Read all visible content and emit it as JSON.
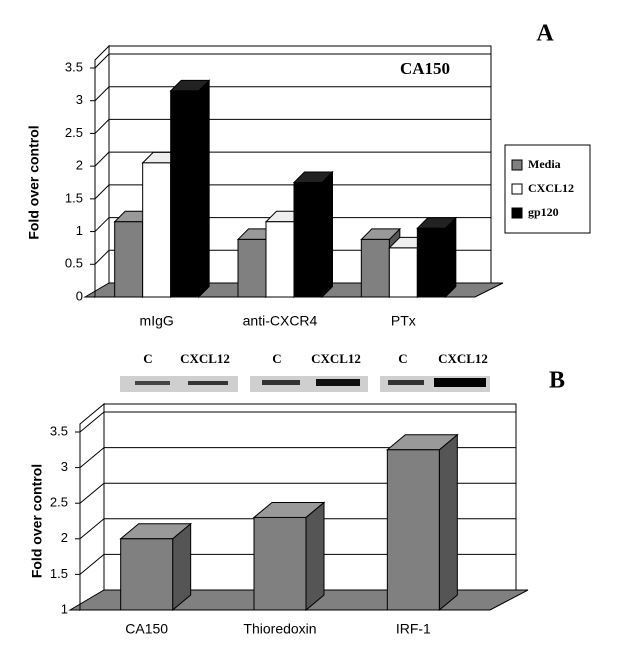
{
  "chart_data": [
    {
      "type": "bar3d",
      "panel": "A",
      "title": "CA150",
      "y_label": "Fold over control",
      "categories": [
        "mIgG",
        "anti-CXCR4",
        "PTx"
      ],
      "series": [
        {
          "name": "Media",
          "color": "#808080",
          "values": [
            1.15,
            0.88,
            0.88
          ]
        },
        {
          "name": "CXCL12",
          "color": "#ffffff",
          "values": [
            2.05,
            1.15,
            0.75
          ]
        },
        {
          "name": "gp120",
          "color": "#000000",
          "values": [
            3.15,
            1.75,
            1.05
          ]
        }
      ],
      "ylim": [
        0,
        3.5
      ],
      "yticks": [
        0,
        0.5,
        1,
        1.5,
        2,
        2.5,
        3,
        3.5
      ],
      "grid": true,
      "legend": "right"
    },
    {
      "type": "bar3d",
      "panel": "B",
      "y_label": "Fold over control",
      "lane_labels": [
        "C",
        "CXCL12",
        "C",
        "CXCL12",
        "C",
        "CXCL12"
      ],
      "categories": [
        "CA150",
        "Thioredoxin",
        "IRF-1"
      ],
      "series": [
        {
          "color": "#808080",
          "values": [
            2.0,
            2.3,
            3.25
          ]
        }
      ],
      "ylim": [
        1,
        3.5
      ],
      "yticks": [
        1,
        1.5,
        2,
        2.5,
        3,
        3.5
      ],
      "grid": true
    }
  ]
}
